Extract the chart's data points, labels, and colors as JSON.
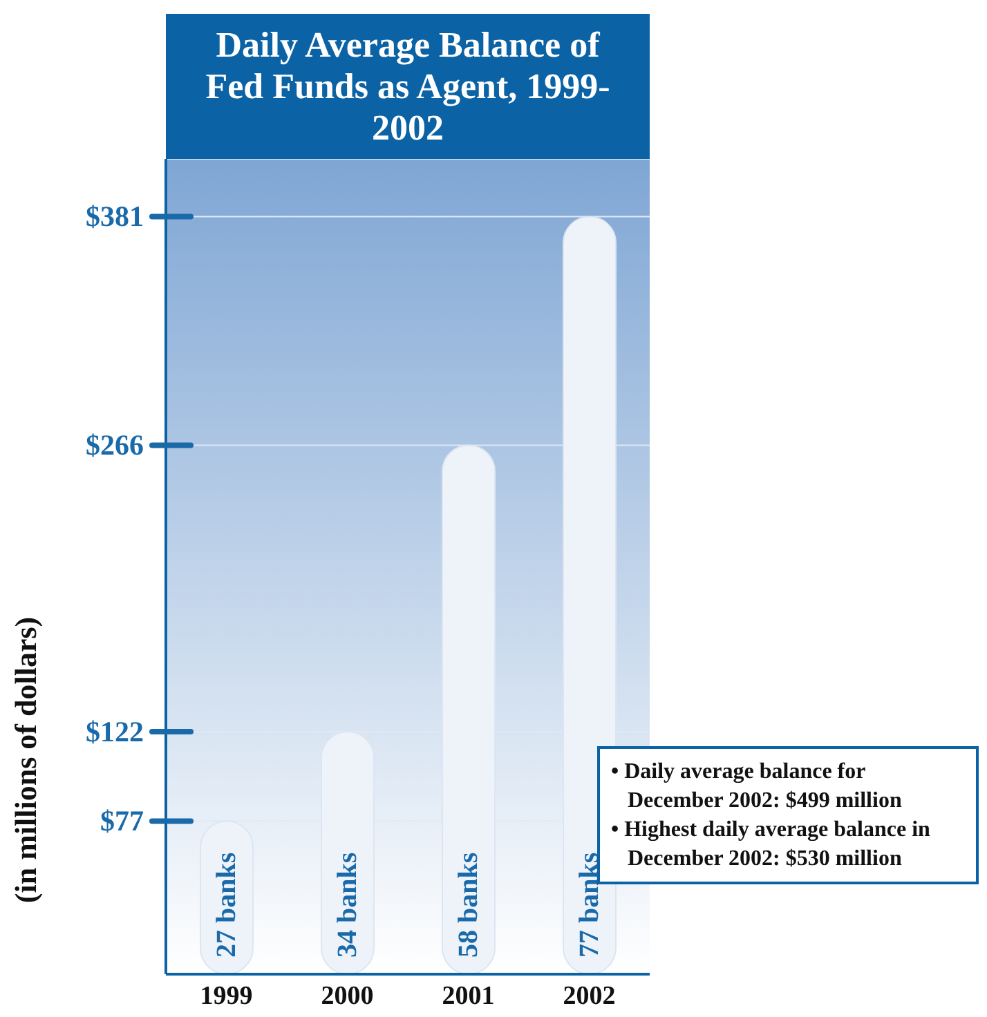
{
  "chart_data": {
    "type": "bar",
    "title": "Daily Average Balance of Fed Funds as Agent, 1999-2002",
    "ylabel": "(in millions of dollars)",
    "categories": [
      "1999",
      "2000",
      "2001",
      "2002"
    ],
    "values": [
      77,
      122,
      266,
      381
    ],
    "color": "#eef3fa",
    "ylim": [
      0,
      410
    ],
    "yticks": [
      {
        "value": 77,
        "label": "$77"
      },
      {
        "value": 122,
        "label": "$122"
      },
      {
        "value": 266,
        "label": "$266"
      },
      {
        "value": 381,
        "label": "$381"
      }
    ],
    "grid": "y",
    "annotations": [
      "27 banks",
      "34 banks",
      "58 banks",
      "77 banks",
      "• Daily average balance for December 2002: $499 million",
      "• Highest daily average balance in December 2002: $530 million"
    ]
  }
}
